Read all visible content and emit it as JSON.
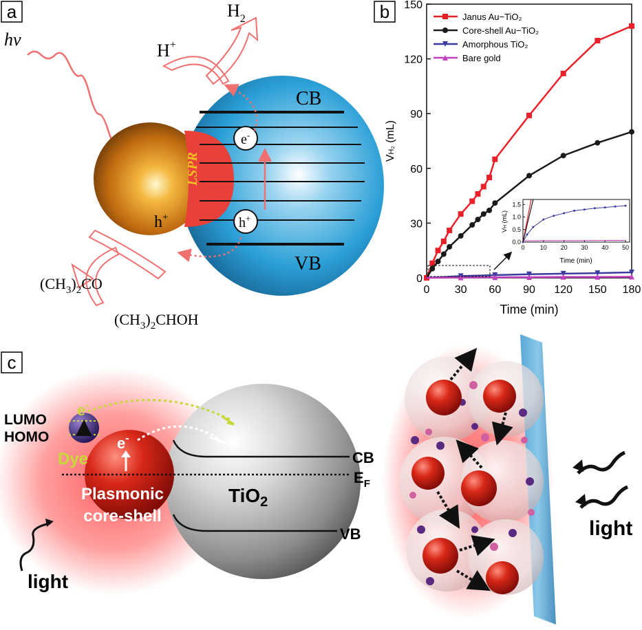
{
  "panel_a": {
    "label": "a",
    "hv": "hv",
    "h_plus_top": "H",
    "h_plus_top_sup": "+",
    "h2": "H",
    "h2_sub": "2",
    "cb": "CB",
    "vb": "VB",
    "electron": "e",
    "electron_sup": "-",
    "hole": "h",
    "hole_sup": "+",
    "hole_gold": "h",
    "hole_gold_sup": "+",
    "lspr": "LSPR",
    "acetone_a": "(CH",
    "acetone_b": "3",
    "acetone_c": ")",
    "acetone_d": "2",
    "acetone_e": "CO",
    "ipa_a": "(CH",
    "ipa_b": "3",
    "ipa_c": ")",
    "ipa_d": "2",
    "ipa_e": "CHOH",
    "colors": {
      "gold": "#e08a1e",
      "tio2": "#2a9fd6",
      "lspr": "#e8413a",
      "arrow": "#f08080"
    }
  },
  "panel_b": {
    "label": "b",
    "chart_data": {
      "type": "line",
      "xlabel": "Time (min)",
      "ylabel_main": "V",
      "ylabel_sub": "H₂",
      "ylabel_unit": " (mL)",
      "xlim": [
        0,
        180
      ],
      "ylim": [
        0,
        150
      ],
      "x_ticks": [
        0,
        30,
        60,
        90,
        120,
        150,
        180
      ],
      "y_ticks": [
        0,
        30,
        60,
        90,
        120,
        150
      ],
      "series": [
        {
          "name": "Janus Au−TiO₂",
          "color": "#e8202a",
          "marker": "square",
          "x": [
            0,
            5,
            10,
            15,
            20,
            30,
            40,
            45,
            50,
            55,
            60,
            90,
            120,
            150,
            180
          ],
          "y": [
            0,
            8,
            15,
            20,
            26,
            35,
            42,
            46,
            50,
            55,
            65,
            89,
            112,
            130,
            138
          ]
        },
        {
          "name": "Core-shell Au−TiO₂",
          "color": "#1a1a1a",
          "marker": "circle",
          "x": [
            0,
            5,
            10,
            15,
            20,
            30,
            40,
            45,
            50,
            55,
            60,
            90,
            120,
            150,
            180
          ],
          "y": [
            0,
            5,
            9,
            13,
            17,
            23,
            29,
            32,
            35,
            37,
            41,
            56,
            67,
            74,
            80
          ]
        },
        {
          "name": "Amorphous TiO₂",
          "color": "#3a3aa0",
          "marker": "triangle-down",
          "x": [
            0,
            30,
            60,
            90,
            120,
            150,
            180
          ],
          "y": [
            0,
            1,
            1.5,
            2,
            2.3,
            2.6,
            3
          ]
        },
        {
          "name": "Bare gold",
          "color": "#c040c0",
          "marker": "triangle-up",
          "x": [
            0,
            30,
            60,
            90,
            120,
            150,
            180
          ],
          "y": [
            0,
            0.2,
            0.3,
            0.4,
            0.5,
            0.5,
            0.6
          ]
        }
      ],
      "legend_position": "top-left",
      "inset": {
        "xlabel": "Time  (min)",
        "ylabel": "V",
        "ylabel_sub": "H",
        "ylabel_unit": " (mL)",
        "x_ticks": [
          0,
          10,
          20,
          30,
          40,
          50
        ],
        "y_ticks": [
          0.0,
          0.5,
          1.0,
          1.5
        ],
        "xlim": [
          0,
          52
        ],
        "ylim": [
          0,
          1.7
        ],
        "series_amorphous": {
          "x": [
            0,
            2,
            5,
            10,
            15,
            20,
            25,
            30,
            35,
            40,
            45,
            50
          ],
          "y": [
            0,
            0.3,
            0.6,
            0.9,
            1.05,
            1.15,
            1.25,
            1.3,
            1.35,
            1.38,
            1.42,
            1.45
          ]
        },
        "series_bare": {
          "x": [
            0,
            10,
            20,
            30,
            40,
            50
          ],
          "y": [
            0.05,
            0.06,
            0.06,
            0.06,
            0.07,
            0.07
          ]
        }
      }
    }
  },
  "panel_c": {
    "label": "c",
    "lumo": "LUMO",
    "homo": "HOMO",
    "dye": "Dye",
    "electron_dye": "e",
    "electron_dye_sup": "-",
    "electron_core": "e",
    "electron_core_sup": "-",
    "plasmonic_1": "Plasmonic",
    "plasmonic_2": "core-shell",
    "tio2_a": "TiO",
    "tio2_b": "2",
    "cb": "CB",
    "ef_a": "E",
    "ef_b": "F",
    "vb": "VB",
    "light_left": "light",
    "light_right": "light",
    "colors": {
      "core": "#c8201a",
      "glow": "#ff5050",
      "dye": "#4a2a80",
      "yellow": "#c8d838",
      "tio2": "#a8a8a8"
    }
  }
}
